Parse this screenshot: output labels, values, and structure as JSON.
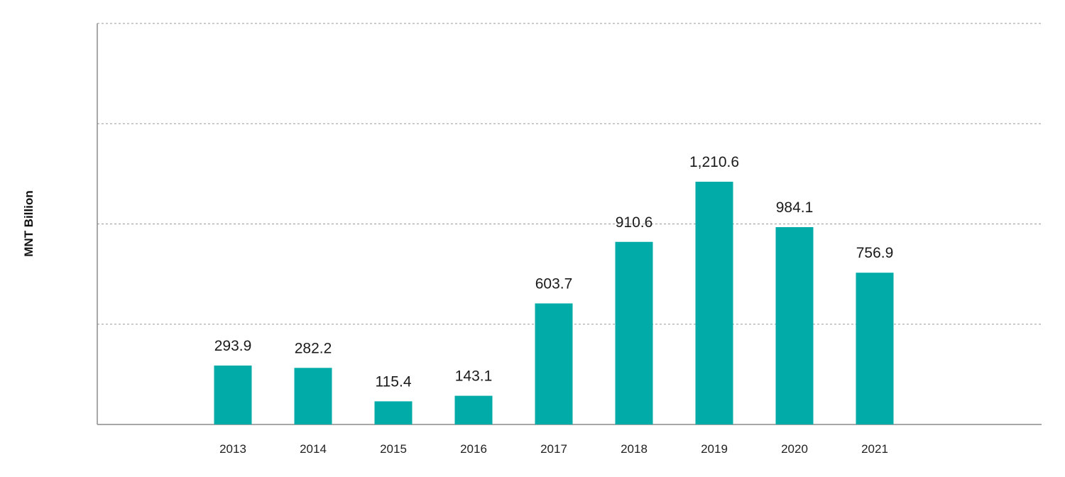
{
  "chart_data": {
    "type": "bar",
    "title": "",
    "xlabel": "",
    "ylabel": "MNT Billion",
    "categories": [
      "2013",
      "2014",
      "2015",
      "2016",
      "2017",
      "2018",
      "2019",
      "2020",
      "2021"
    ],
    "values": [
      293.9,
      282.2,
      115.4,
      143.1,
      603.7,
      910.6,
      1210.6,
      984.1,
      756.9
    ],
    "data_labels": [
      "293.9",
      "282.2",
      "115.4",
      "143.1",
      "603.7",
      "910.6",
      "1,210.6",
      "984.1",
      "756.9"
    ],
    "ylim": [
      0,
      2000
    ],
    "ytick_values": [
      0,
      500,
      1000,
      1500,
      2000
    ],
    "show_ytick_labels": false,
    "grid": "horizontal dashed",
    "legend": "none",
    "colors": {
      "bar": "#00ABA8",
      "grid": "#9A9A9A",
      "axis": "#8C8C8C"
    }
  }
}
